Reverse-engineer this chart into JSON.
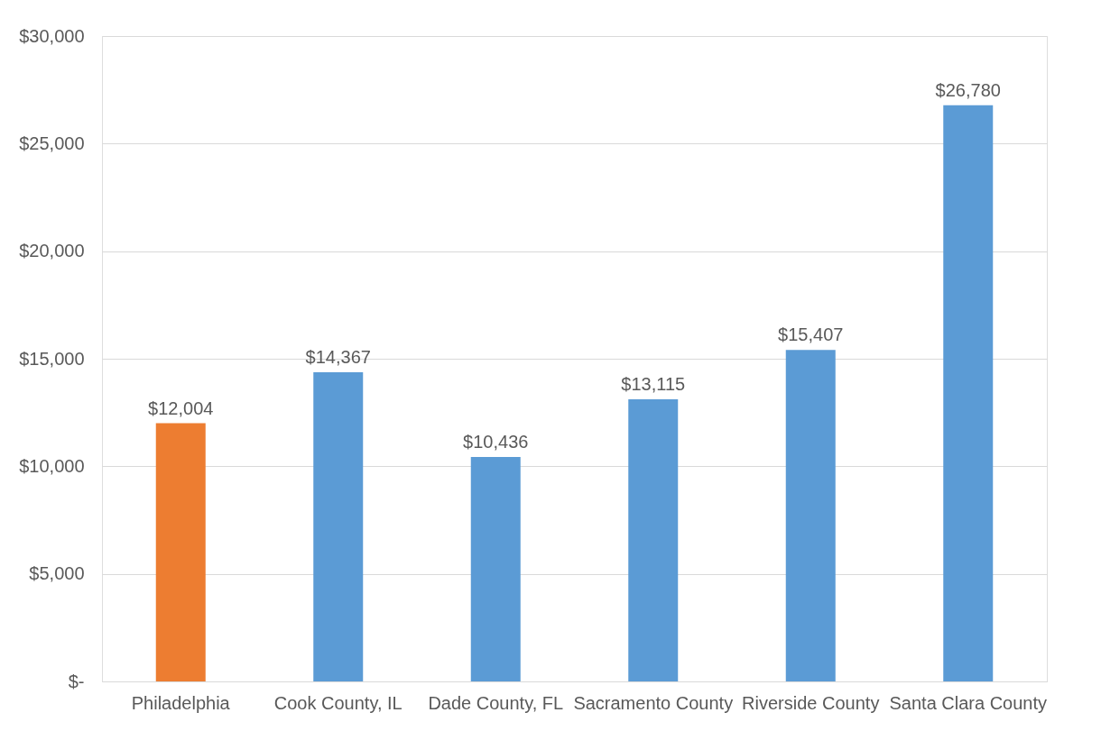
{
  "chart_data": {
    "type": "bar",
    "categories": [
      "Philadelphia",
      "Cook County, IL",
      "Dade County, FL",
      "Sacramento County",
      "Riverside County",
      "Santa Clara County"
    ],
    "values": [
      12004,
      14367,
      10436,
      13115,
      15407,
      26780
    ],
    "colors": [
      "#ed7d31",
      "#5b9bd5",
      "#5b9bd5",
      "#5b9bd5",
      "#5b9bd5",
      "#5b9bd5"
    ],
    "value_labels": [
      "$12,004",
      "$14,367",
      "$10,436",
      "$13,115",
      "$15,407",
      "$26,780"
    ],
    "ylim": [
      0,
      30000
    ],
    "yticks": [
      {
        "value": 0,
        "label": "$-"
      },
      {
        "value": 5000,
        "label": "$5,000"
      },
      {
        "value": 10000,
        "label": "$10,000"
      },
      {
        "value": 15000,
        "label": "$15,000"
      },
      {
        "value": 20000,
        "label": "$20,000"
      },
      {
        "value": 25000,
        "label": "$25,000"
      },
      {
        "value": 30000,
        "label": "$30,000"
      }
    ],
    "grid": "y"
  }
}
